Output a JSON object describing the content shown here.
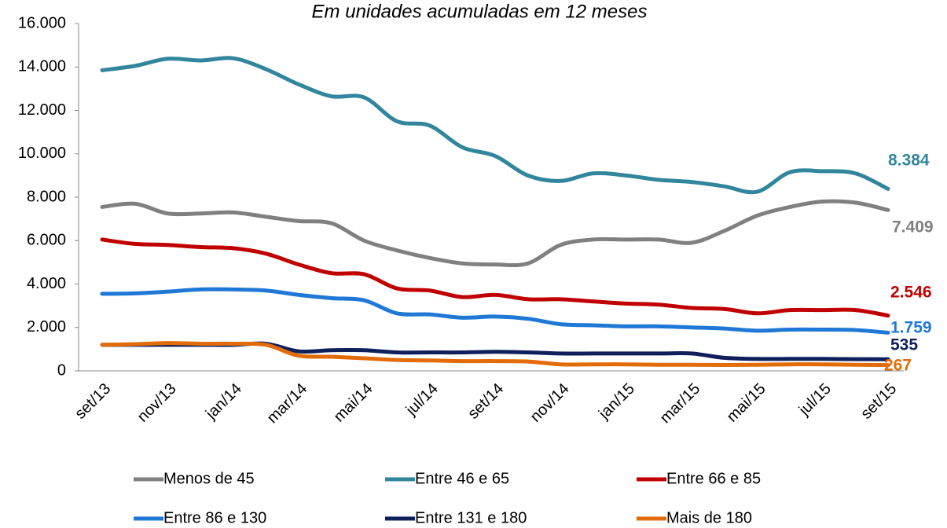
{
  "chart_data": {
    "type": "line",
    "title": "Em unidades acumuladas em 12 meses",
    "categories": [
      "set/13",
      null,
      "nov/13",
      null,
      "jan/14",
      null,
      "mar/14",
      null,
      "mai/14",
      null,
      "jul/14",
      null,
      "set/14",
      null,
      "nov/14",
      null,
      "jan/15",
      null,
      "mar/15",
      null,
      "mai/15",
      null,
      "jul/15",
      null,
      "set/15"
    ],
    "ylim": [
      0,
      16000
    ],
    "yticks": [
      0,
      {
        "value": 2000,
        "label": "2.000"
      },
      {
        "value": 4000,
        "label": "4.000"
      },
      {
        "value": 6000,
        "label": "6.000"
      },
      {
        "value": 8000,
        "label": "8.000"
      },
      {
        "value": 10000,
        "label": "10.000"
      },
      {
        "value": 12000,
        "label": "12.000"
      },
      {
        "value": 14000,
        "label": "14.000"
      },
      {
        "value": 16000,
        "label": "16.000"
      }
    ],
    "grid": false,
    "legend": "bottom",
    "series": [
      {
        "name": "Menos de 45",
        "color": "#808080",
        "values": [
          7550,
          7700,
          7250,
          7250,
          7300,
          7100,
          6900,
          6800,
          6000,
          5550,
          5200,
          4950,
          4900,
          4950,
          5800,
          6050,
          6050,
          6050,
          5900,
          6450,
          7150,
          7550,
          7800,
          7750,
          7409
        ],
        "value_labels": [
          null,
          null,
          null,
          null,
          null,
          null,
          null,
          null,
          null,
          null,
          null,
          null,
          null,
          null,
          null,
          null,
          null,
          null,
          null,
          null,
          null,
          null,
          null,
          null,
          "7.409"
        ]
      },
      {
        "name": "Entre 46 e 65",
        "color": "#31859c",
        "values": [
          13850,
          14050,
          14380,
          14300,
          14400,
          13900,
          13200,
          12650,
          12600,
          11500,
          11300,
          10300,
          9900,
          9000,
          8750,
          9100,
          9000,
          8800,
          8700,
          8500,
          8250,
          9150,
          9200,
          9100,
          8384
        ],
        "value_labels": [
          null,
          null,
          null,
          null,
          null,
          null,
          null,
          null,
          null,
          null,
          null,
          null,
          null,
          null,
          null,
          null,
          null,
          null,
          null,
          null,
          null,
          null,
          null,
          null,
          "8.384"
        ]
      },
      {
        "name": "Entre 66 e 85",
        "color": "#c00000",
        "values": [
          6050,
          5850,
          5800,
          5700,
          5650,
          5400,
          4900,
          4500,
          4450,
          3800,
          3700,
          3400,
          3500,
          3300,
          3300,
          3200,
          3100,
          3050,
          2900,
          2850,
          2650,
          2800,
          2800,
          2800,
          2546
        ],
        "value_labels": [
          null,
          null,
          null,
          null,
          null,
          null,
          null,
          null,
          null,
          null,
          null,
          null,
          null,
          null,
          null,
          null,
          null,
          null,
          null,
          null,
          null,
          null,
          null,
          null,
          "2.546"
        ]
      },
      {
        "name": "Entre 86 e 130",
        "color": "#1f78d6",
        "values": [
          3550,
          3570,
          3650,
          3750,
          3750,
          3700,
          3500,
          3350,
          3250,
          2650,
          2600,
          2450,
          2500,
          2400,
          2150,
          2100,
          2050,
          2050,
          2000,
          1950,
          1850,
          1900,
          1900,
          1880,
          1759
        ],
        "value_labels": [
          null,
          null,
          null,
          null,
          null,
          null,
          null,
          null,
          null,
          null,
          null,
          null,
          null,
          null,
          null,
          null,
          null,
          null,
          null,
          null,
          null,
          null,
          null,
          null,
          "1.759"
        ]
      },
      {
        "name": "Entre 131 e 180",
        "color": "#0f1f5c",
        "values": [
          1200,
          1200,
          1200,
          1200,
          1200,
          1250,
          900,
          950,
          950,
          850,
          850,
          850,
          880,
          850,
          800,
          800,
          800,
          800,
          800,
          600,
          550,
          550,
          550,
          540,
          535
        ]
      },
      {
        "name": "Mais de 180",
        "color": "#e36c0a",
        "values": [
          1200,
          1230,
          1280,
          1250,
          1250,
          1200,
          700,
          650,
          580,
          500,
          480,
          450,
          450,
          430,
          300,
          300,
          300,
          280,
          280,
          270,
          280,
          300,
          300,
          280,
          267
        ]
      }
    ]
  }
}
